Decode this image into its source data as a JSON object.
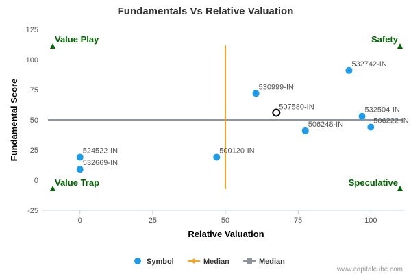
{
  "chart_data": {
    "type": "scatter",
    "title": "Fundamentals Vs Relative Valuation",
    "xlabel": "Relative Valuation",
    "ylabel": "Fundamental Score",
    "xlim": [
      -11,
      111
    ],
    "ylim": [
      -25,
      125
    ],
    "x_ticks": [
      "0",
      "25",
      "50",
      "75",
      "100"
    ],
    "y_ticks": [
      "125",
      "100",
      "75",
      "50",
      "25",
      "0",
      "-25"
    ],
    "grid": false,
    "legend_position": "bottom",
    "points": [
      {
        "label": "532742-IN",
        "x": 92.5,
        "y": 91
      },
      {
        "label": "530999-IN",
        "x": 60.5,
        "y": 72
      },
      {
        "label": "532504-IN",
        "x": 97,
        "y": 53
      },
      {
        "label": "506222-IN",
        "x": 100,
        "y": 44
      },
      {
        "label": "506248-IN",
        "x": 77.5,
        "y": 41
      },
      {
        "label": "524522-IN",
        "x": 0,
        "y": 19
      },
      {
        "label": "500120-IN",
        "x": 47,
        "y": 19
      },
      {
        "label": "532669-IN",
        "x": 0,
        "y": 9
      }
    ],
    "highlight": {
      "label": "507580-IN",
      "x": 67.5,
      "y": 56
    },
    "median_x": 50,
    "median_y": 50,
    "quadrants": {
      "top_left": "Value Play",
      "top_right": "Safety",
      "bottom_left": "Value Trap",
      "bottom_right": "Speculative"
    },
    "legend": [
      "Symbol",
      "Median",
      "Median"
    ],
    "colors": {
      "symbol": "#1e9be9",
      "median_x": "#f5a623",
      "median_y": "#8e949e",
      "quadrant": "#006600",
      "highlight_stroke": "#000000"
    }
  },
  "credit": "www.capitalcube.com"
}
